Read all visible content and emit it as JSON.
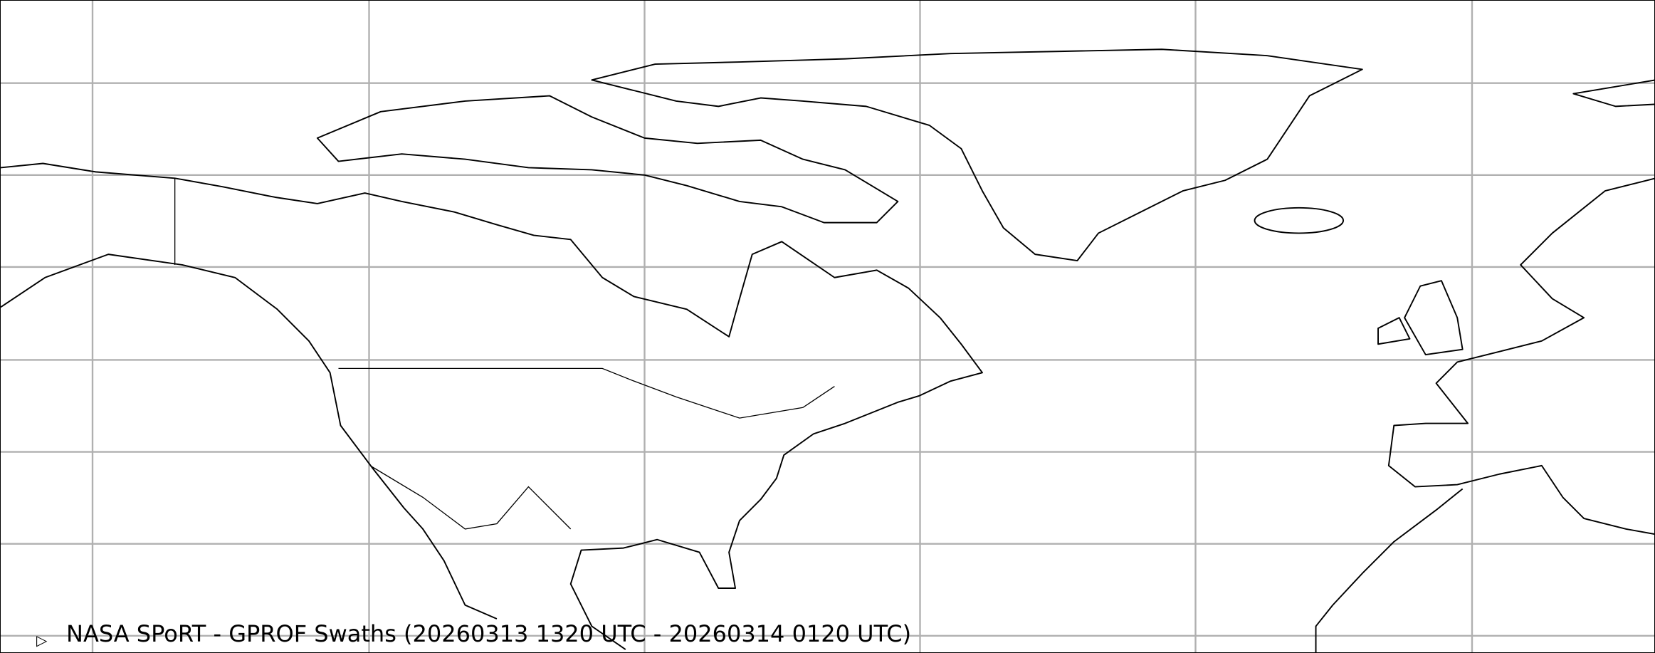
{
  "map": {
    "title": "NASA SPoRT - GPROF Swaths (20260313 1320 UTC - 20260314 0120 UTC)",
    "legend_icon": "swath-outline-icon",
    "gridline_color": "#b0b0b0",
    "coastline_color": "#000000"
  }
}
